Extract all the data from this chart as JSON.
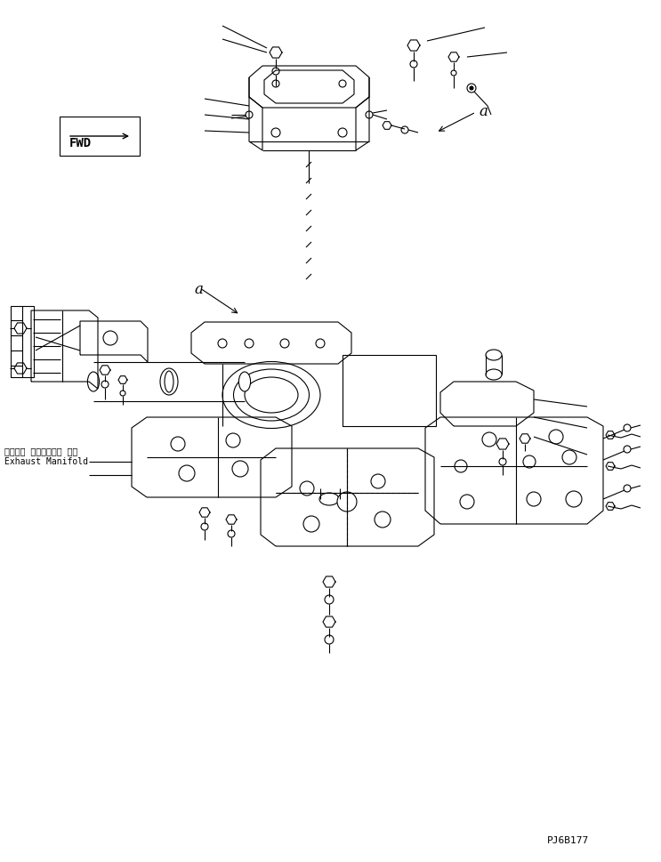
{
  "bg_color": "#ffffff",
  "line_color": "#000000",
  "lw": 0.8,
  "fwd_text": "FWD",
  "exhaust_jp": "エキゾー ストマニホー ルド",
  "exhaust_en": "Exhaust Manifold",
  "part_code": "PJ6B177",
  "label_a1": "a",
  "label_a2": "a"
}
